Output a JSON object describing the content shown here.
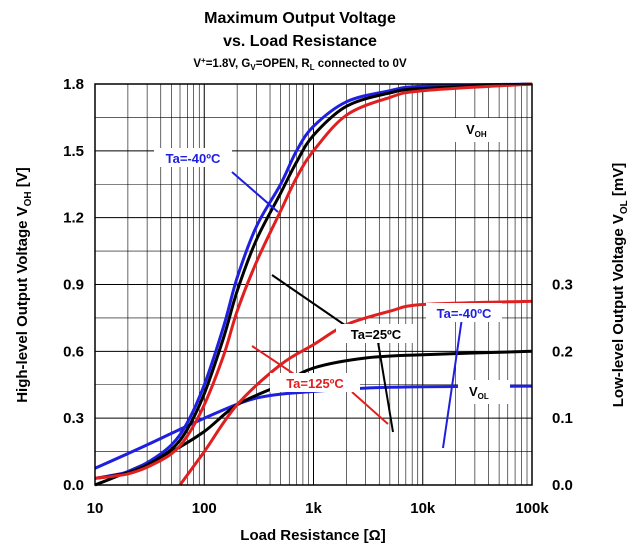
{
  "chart_data": {
    "type": "line",
    "title_line1": "Maximum Output Voltage",
    "title_line2": "vs. Load Resistance",
    "subtitle_parts": [
      "V",
      "+",
      "=1.8V, G",
      "V",
      "=OPEN, R",
      "L",
      " connected to 0V"
    ],
    "x_axis": {
      "label": "Load Resistance [Ω]",
      "scale": "log",
      "range": [
        10,
        100000
      ],
      "ticks": [
        10,
        100,
        1000,
        10000,
        100000
      ],
      "tick_labels": [
        "10",
        "100",
        "1k",
        "10k",
        "100k"
      ]
    },
    "y_left": {
      "label_main": "High-level Output Voltage V",
      "label_sub": "OH",
      "label_unit": " [V]",
      "range": [
        0,
        1.8
      ],
      "ticks": [
        0,
        0.3,
        0.6,
        0.9,
        1.2,
        1.5,
        1.8
      ],
      "tick_labels": [
        "0.0",
        "0.3",
        "0.6",
        "0.9",
        "1.2",
        "1.5",
        "1.8"
      ]
    },
    "y_right": {
      "label_main": "Low-level Output Voltage V",
      "label_sub": "OL",
      "label_unit": " [mV]",
      "range_mV": [
        0,
        0.6
      ],
      "ticks": [
        0,
        0.1,
        0.2,
        0.3
      ],
      "tick_labels": [
        "0.0",
        "0.1",
        "0.2",
        "0.3"
      ]
    },
    "grid": true,
    "voh_series": [
      {
        "name": "Ta=-40ºC",
        "color": "#1f1fe0",
        "x": [
          10,
          15,
          20,
          30,
          50,
          70,
          100,
          150,
          200,
          300,
          500,
          700,
          1000,
          2000,
          5000,
          10000,
          100000
        ],
        "y": [
          0.03,
          0.045,
          0.06,
          0.1,
          0.18,
          0.28,
          0.45,
          0.71,
          0.93,
          1.16,
          1.35,
          1.5,
          1.61,
          1.72,
          1.77,
          1.79,
          1.8
        ]
      },
      {
        "name": "Ta=25ºC",
        "color": "#000000",
        "x": [
          10,
          15,
          20,
          30,
          50,
          70,
          100,
          150,
          200,
          300,
          500,
          700,
          1000,
          2000,
          5000,
          10000,
          100000
        ],
        "y": [
          0.03,
          0.042,
          0.055,
          0.09,
          0.16,
          0.25,
          0.41,
          0.66,
          0.87,
          1.1,
          1.31,
          1.45,
          1.57,
          1.7,
          1.76,
          1.78,
          1.8
        ]
      },
      {
        "name": "Ta=125ºC",
        "color": "#e02020",
        "x": [
          10,
          15,
          20,
          30,
          50,
          70,
          100,
          150,
          200,
          300,
          500,
          700,
          1000,
          2000,
          5000,
          10000,
          100000
        ],
        "y": [
          0.03,
          0.04,
          0.05,
          0.08,
          0.14,
          0.22,
          0.36,
          0.58,
          0.78,
          1.0,
          1.23,
          1.38,
          1.5,
          1.66,
          1.74,
          1.77,
          1.8
        ]
      }
    ],
    "vol_series": [
      {
        "name": "Ta=-40ºC",
        "color": "#1f1fe0",
        "x": [
          10,
          30,
          100,
          300,
          1000,
          3000,
          10000,
          100000
        ],
        "y": [
          0.025,
          0.06,
          0.1,
          0.13,
          0.14,
          0.145,
          0.147,
          0.148
        ]
      },
      {
        "name": "Ta=25ºC",
        "color": "#000000",
        "x": [
          10,
          20,
          50,
          100,
          200,
          500,
          1000,
          3000,
          10000,
          100000
        ],
        "y": [
          0.0,
          0.02,
          0.05,
          0.08,
          0.12,
          0.15,
          0.175,
          0.19,
          0.195,
          0.2
        ]
      },
      {
        "name": "Ta=125ºC",
        "color": "#e02020",
        "x": [
          60,
          100,
          200,
          500,
          1000,
          2000,
          5000,
          10000,
          100000
        ],
        "y": [
          0.0,
          0.05,
          0.12,
          0.18,
          0.21,
          0.24,
          0.26,
          0.27,
          0.275
        ]
      }
    ],
    "annotations": {
      "voh_tag_main": "V",
      "voh_tag_sub": "OH",
      "vol_tag_main": "V",
      "vol_tag_sub": "OL",
      "ta_m40_voh": "Ta=-40ºC",
      "ta_25": "Ta=25ºC",
      "ta_125": "Ta=125ºC",
      "ta_m40_vol": "Ta=-40ºC"
    }
  }
}
